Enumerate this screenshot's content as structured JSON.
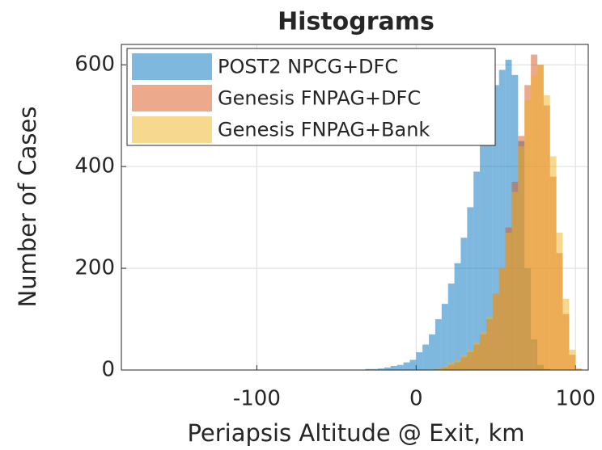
{
  "chart_data": {
    "type": "histogram",
    "title": "Histograms",
    "xlabel": "Periapsis Altitude @ Exit, km",
    "ylabel": "Number of Cases",
    "bins": [
      -32,
      -28,
      -24,
      -20,
      -16,
      -12,
      -8,
      -4,
      0,
      4,
      8,
      12,
      16,
      20,
      24,
      28,
      32,
      36,
      40,
      44,
      48,
      52,
      56,
      60,
      64,
      68,
      72,
      76,
      80,
      84,
      88,
      92,
      96,
      100,
      104
    ],
    "series": [
      {
        "name": "POST2 NPCG+DFC",
        "color": "#0072bd",
        "values": [
          2,
          2,
          3,
          5,
          8,
          10,
          15,
          20,
          35,
          50,
          70,
          100,
          130,
          170,
          210,
          260,
          320,
          390,
          450,
          500,
          560,
          590,
          610,
          580,
          450,
          200,
          60,
          10,
          2,
          0,
          0,
          0,
          0,
          0
        ]
      },
      {
        "name": "Genesis FNPAG+DFC",
        "color": "#d95319",
        "values": [
          0,
          0,
          0,
          0,
          0,
          0,
          0,
          0,
          0,
          0,
          0,
          2,
          5,
          10,
          15,
          25,
          35,
          50,
          70,
          100,
          150,
          200,
          280,
          370,
          460,
          560,
          620,
          600,
          520,
          380,
          230,
          110,
          30,
          2
        ]
      },
      {
        "name": "Genesis FNPAG+Bank",
        "color": "#edb120",
        "values": [
          0,
          0,
          0,
          0,
          0,
          0,
          0,
          0,
          0,
          0,
          0,
          3,
          8,
          15,
          20,
          30,
          40,
          55,
          75,
          105,
          150,
          200,
          270,
          350,
          440,
          530,
          580,
          600,
          540,
          420,
          270,
          140,
          40,
          3
        ]
      }
    ],
    "alpha": 0.5,
    "xlim": [
      -185,
      108
    ],
    "xticks": [
      -100,
      0,
      100
    ],
    "ylim": [
      0,
      640
    ],
    "yticks": [
      0,
      200,
      400,
      600
    ],
    "grid": true,
    "legend": "northwest"
  }
}
